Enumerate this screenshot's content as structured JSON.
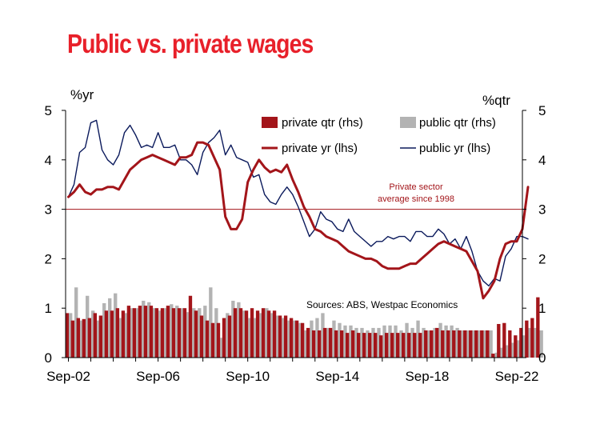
{
  "chart_data": {
    "type": "bar+line",
    "title": "Public vs. private wages",
    "left_axis": {
      "unit_label": "%yr",
      "ylim": [
        0,
        5
      ],
      "ticks": [
        "0",
        "1",
        "2",
        "3",
        "4",
        "5"
      ]
    },
    "right_axis": {
      "unit_label": "%qtr",
      "ylim": [
        0,
        5
      ],
      "ticks": [
        "0",
        "1",
        "2",
        "3",
        "4",
        "5"
      ]
    },
    "x_tick_labels": [
      "Sep-02",
      "Sep-06",
      "Sep-10",
      "Sep-14",
      "Sep-18",
      "Sep-22"
    ],
    "x_start": "Sep-02",
    "x_end": "Sep-22",
    "legend": {
      "placement": "top-right",
      "entries": [
        "private qtr (rhs)",
        "public qtr (rhs)",
        "private yr (lhs)",
        "public yr (lhs)"
      ]
    },
    "reference_line": {
      "value": 3.0,
      "label_line1": "Private sector",
      "label_line2": "average since 1998"
    },
    "source": "Sources: ABS, Westpac Economics",
    "colors": {
      "private": "#a3151a",
      "public_bar": "#b3b3b3",
      "public_line": "#0b1a5c",
      "title": "#e8202a",
      "reference": "#a3151a"
    },
    "series": [
      {
        "name": "private qtr (rhs)",
        "kind": "bar",
        "axis": "right",
        "values": [
          0.9,
          0.75,
          0.8,
          0.78,
          0.8,
          0.9,
          0.85,
          0.95,
          0.95,
          1.0,
          0.95,
          1.05,
          1.0,
          1.05,
          1.05,
          1.05,
          1.0,
          1.0,
          1.05,
          1.0,
          1.0,
          1.0,
          1.25,
          0.95,
          0.85,
          0.75,
          0.7,
          0.7,
          0.8,
          0.85,
          1.0,
          1.0,
          0.95,
          1.0,
          0.95,
          1.0,
          0.95,
          0.95,
          0.85,
          0.85,
          0.8,
          0.75,
          0.7,
          0.6,
          0.55,
          0.55,
          0.6,
          0.6,
          0.55,
          0.55,
          0.5,
          0.55,
          0.5,
          0.5,
          0.5,
          0.5,
          0.45,
          0.5,
          0.5,
          0.5,
          0.5,
          0.5,
          0.5,
          0.5,
          0.55,
          0.55,
          0.6,
          0.55,
          0.55,
          0.55,
          0.55,
          0.55,
          0.55,
          0.55,
          0.55,
          0.55,
          0.08,
          0.68,
          0.7,
          0.55,
          0.45,
          0.6,
          0.75,
          0.8,
          1.22
        ]
      },
      {
        "name": "public qtr (rhs)",
        "kind": "bar",
        "axis": "right",
        "values": [
          0.9,
          1.42,
          0.75,
          1.25,
          0.95,
          0.75,
          1.1,
          1.2,
          1.3,
          0.8,
          0.9,
          1.0,
          1.0,
          1.15,
          1.12,
          1.0,
          0.95,
          1.0,
          1.08,
          1.05,
          1.0,
          0.92,
          1.0,
          1.0,
          1.05,
          1.42,
          1.0,
          0.4,
          0.9,
          1.15,
          1.12,
          0.95,
          0.8,
          0.8,
          0.9,
          1.0,
          0.9,
          0.85,
          0.8,
          0.75,
          0.75,
          0.7,
          0.55,
          0.75,
          0.8,
          0.9,
          0.6,
          0.75,
          0.7,
          0.65,
          0.65,
          0.6,
          0.6,
          0.55,
          0.6,
          0.6,
          0.65,
          0.65,
          0.65,
          0.55,
          0.7,
          0.6,
          0.75,
          0.6,
          0.55,
          0.6,
          0.7,
          0.65,
          0.65,
          0.6,
          0.55,
          0.55,
          0.55,
          0.55,
          0.55,
          0.55,
          0.1,
          0.2,
          0.25,
          0.3,
          0.35,
          0.45,
          0.6,
          0.6,
          0.55
        ]
      },
      {
        "name": "private yr (lhs)",
        "kind": "line",
        "axis": "left",
        "values": [
          3.25,
          3.35,
          3.5,
          3.35,
          3.3,
          3.4,
          3.4,
          3.45,
          3.45,
          3.4,
          3.6,
          3.8,
          3.9,
          4.0,
          4.05,
          4.1,
          4.05,
          4.0,
          3.95,
          3.9,
          4.05,
          4.05,
          4.1,
          4.35,
          4.35,
          4.3,
          4.05,
          3.8,
          2.85,
          2.6,
          2.6,
          2.8,
          3.55,
          3.8,
          4.0,
          3.85,
          3.75,
          3.8,
          3.75,
          3.9,
          3.6,
          3.35,
          3.05,
          2.85,
          2.6,
          2.55,
          2.45,
          2.4,
          2.35,
          2.25,
          2.15,
          2.1,
          2.05,
          2.0,
          2.0,
          1.95,
          1.85,
          1.8,
          1.8,
          1.8,
          1.85,
          1.9,
          1.9,
          2.0,
          2.1,
          2.2,
          2.3,
          2.35,
          2.3,
          2.25,
          2.2,
          2.15,
          1.95,
          1.75,
          1.2,
          1.35,
          1.55,
          2.0,
          2.3,
          2.35,
          2.35,
          2.6,
          3.45
        ]
      },
      {
        "name": "public yr (lhs)",
        "kind": "line",
        "axis": "left",
        "values": [
          3.25,
          3.5,
          4.15,
          4.25,
          4.75,
          4.8,
          4.2,
          4.0,
          3.9,
          4.1,
          4.55,
          4.7,
          4.5,
          4.25,
          4.3,
          4.25,
          4.55,
          4.25,
          4.25,
          4.3,
          4.0,
          4.0,
          3.9,
          3.7,
          4.15,
          4.35,
          4.45,
          4.6,
          4.1,
          4.3,
          4.05,
          4.0,
          3.95,
          3.65,
          3.7,
          3.3,
          3.15,
          3.1,
          3.3,
          3.45,
          3.3,
          3.05,
          2.75,
          2.45,
          2.6,
          2.95,
          2.8,
          2.75,
          2.6,
          2.55,
          2.8,
          2.55,
          2.45,
          2.35,
          2.25,
          2.35,
          2.35,
          2.45,
          2.4,
          2.45,
          2.45,
          2.35,
          2.55,
          2.55,
          2.45,
          2.45,
          2.6,
          2.5,
          2.3,
          2.4,
          2.2,
          2.45,
          2.15,
          1.75,
          1.55,
          1.45,
          1.6,
          1.55,
          2.05,
          2.2,
          2.45,
          2.45,
          2.4
        ]
      }
    ]
  }
}
